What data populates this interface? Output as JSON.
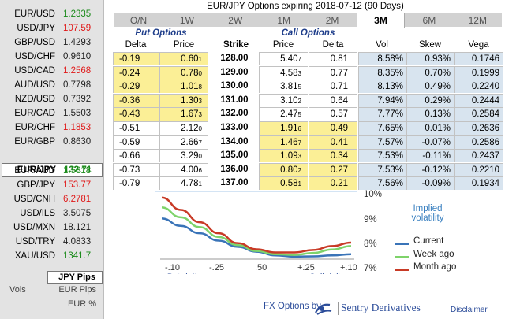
{
  "title": "EUR/JPY Options expiring 2018-07-12 (90 Days)",
  "tabs": [
    "O/N",
    "1W",
    "2W",
    "1M",
    "2M",
    "3M",
    "6M",
    "12M"
  ],
  "active_tab": "3M",
  "pairs": [
    {
      "name": "EUR/USD",
      "value": "1.2335",
      "trend": "up"
    },
    {
      "name": "USD/JPY",
      "value": "107.59",
      "trend": "down"
    },
    {
      "name": "GBP/USD",
      "value": "1.4293",
      "trend": "flat"
    },
    {
      "name": "USD/CHF",
      "value": "0.9610",
      "trend": "flat"
    },
    {
      "name": "USD/CAD",
      "value": "1.2568",
      "trend": "down"
    },
    {
      "name": "AUD/USD",
      "value": "0.7798",
      "trend": "flat"
    },
    {
      "name": "NZD/USD",
      "value": "0.7392",
      "trend": "flat"
    },
    {
      "name": "EUR/CAD",
      "value": "1.5503",
      "trend": "flat"
    },
    {
      "name": "EUR/CHF",
      "value": "1.1853",
      "trend": "down"
    },
    {
      "name": "EUR/GBP",
      "value": "0.8630",
      "trend": "flat"
    },
    {
      "name": "EUR/JPY",
      "value": "132.71",
      "trend": "up"
    },
    {
      "name": "EUR/AUD",
      "value": "1.5818",
      "trend": "up"
    },
    {
      "name": "GBP/JPY",
      "value": "153.77",
      "trend": "down"
    },
    {
      "name": "USD/CNH",
      "value": "6.2781",
      "trend": "down"
    },
    {
      "name": "USD/ILS",
      "value": "3.5075",
      "trend": "flat"
    },
    {
      "name": "USD/MXN",
      "value": "18.121",
      "trend": "flat"
    },
    {
      "name": "USD/TRY",
      "value": "4.0833",
      "trend": "flat"
    },
    {
      "name": "XAU/USD",
      "value": "1341.7",
      "trend": "up"
    }
  ],
  "selected_pair": "EUR/JPY",
  "units": {
    "label": "Vols",
    "options": [
      "JPY Pips",
      "EUR Pips",
      "EUR %"
    ],
    "selected": "JPY Pips"
  },
  "table": {
    "put_header": "Put Options",
    "call_header": "Call Options",
    "columns": {
      "put_delta": "Delta",
      "put_price": "Price",
      "strike": "Strike",
      "call_price": "Price",
      "call_delta": "Delta",
      "vol": "Vol",
      "skew": "Skew",
      "vega": "Vega"
    },
    "rows": [
      {
        "pd": "-0.19",
        "pp": "0.60",
        "pps": "1",
        "k": "128.00",
        "cp": "5.40",
        "cps": "7",
        "cd": "0.81",
        "v": "8.58%",
        "s": "0.93%",
        "g": "0.1746"
      },
      {
        "pd": "-0.24",
        "pp": "0.78",
        "pps": "0",
        "k": "129.00",
        "cp": "4.58",
        "cps": "3",
        "cd": "0.77",
        "v": "8.35%",
        "s": "0.70%",
        "g": "0.1999"
      },
      {
        "pd": "-0.29",
        "pp": "1.01",
        "pps": "8",
        "k": "130.00",
        "cp": "3.81",
        "cps": "5",
        "cd": "0.71",
        "v": "8.13%",
        "s": "0.49%",
        "g": "0.2240"
      },
      {
        "pd": "-0.36",
        "pp": "1.30",
        "pps": "3",
        "k": "131.00",
        "cp": "3.10",
        "cps": "2",
        "cd": "0.64",
        "v": "7.94%",
        "s": "0.29%",
        "g": "0.2444"
      },
      {
        "pd": "-0.43",
        "pp": "1.67",
        "pps": "3",
        "k": "132.00",
        "cp": "2.47",
        "cps": "5",
        "cd": "0.57",
        "v": "7.77%",
        "s": "0.13%",
        "g": "0.2584"
      },
      {
        "pd": "-0.51",
        "pp": "2.12",
        "pps": "0",
        "k": "133.00",
        "cp": "1.91",
        "cps": "6",
        "cd": "0.49",
        "v": "7.65%",
        "s": "0.01%",
        "g": "0.2636"
      },
      {
        "pd": "-0.59",
        "pp": "2.66",
        "pps": "7",
        "k": "134.00",
        "cp": "1.46",
        "cps": "7",
        "cd": "0.41",
        "v": "7.57%",
        "s": "-0.07%",
        "g": "0.2586"
      },
      {
        "pd": "-0.66",
        "pp": "3.29",
        "pps": "0",
        "k": "135.00",
        "cp": "1.09",
        "cps": "3",
        "cd": "0.34",
        "v": "7.53%",
        "s": "-0.11%",
        "g": "0.2437"
      },
      {
        "pd": "-0.73",
        "pp": "4.00",
        "pps": "6",
        "k": "136.00",
        "cp": "0.80",
        "cps": "2",
        "cd": "0.27",
        "v": "7.53%",
        "s": "-0.12%",
        "g": "0.2210"
      },
      {
        "pd": "-0.79",
        "pp": "4.78",
        "pps": "1",
        "k": "137.00",
        "cp": "0.58",
        "cps": "1",
        "cd": "0.21",
        "v": "7.56%",
        "s": "-0.09%",
        "g": "0.1934"
      }
    ]
  },
  "chart_data": {
    "type": "line",
    "title": "Implied volatility",
    "x_ticks": [
      "-.10",
      "-.25",
      ".50",
      "+.25",
      "+.10"
    ],
    "x_labels": {
      "left": "Put delta",
      "right": "Call delta"
    },
    "y_ticks": [
      "10%",
      "9%",
      "8%",
      "7%"
    ],
    "ylim": [
      7,
      10.2
    ],
    "x": [
      0,
      1,
      2,
      3,
      4,
      5,
      6,
      7,
      8,
      9,
      10
    ],
    "series": [
      {
        "name": "Current",
        "color": "#3a74b8",
        "values": [
          9.1,
          8.8,
          8.5,
          8.2,
          7.95,
          7.75,
          7.6,
          7.55,
          7.56,
          7.6,
          7.65
        ]
      },
      {
        "name": "Week ago",
        "color": "#7ed36a",
        "values": [
          9.55,
          9.15,
          8.75,
          8.35,
          8.02,
          7.78,
          7.65,
          7.62,
          7.7,
          7.84,
          7.98
        ]
      },
      {
        "name": "Month ago",
        "color": "#c83a26",
        "values": [
          9.95,
          9.45,
          8.95,
          8.5,
          8.1,
          7.85,
          7.72,
          7.72,
          7.82,
          7.98,
          8.12
        ]
      }
    ]
  },
  "footer": {
    "label": "FX Options by",
    "brand": "Sentry Derivatives",
    "disclaimer": "Disclaimer"
  }
}
